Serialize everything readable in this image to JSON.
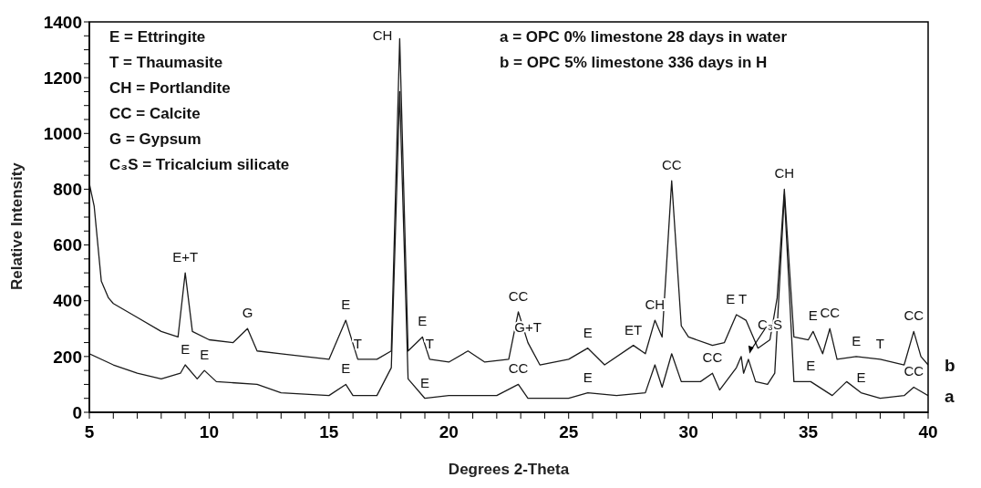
{
  "chart_data": {
    "type": "line",
    "xlabel": "Degrees 2-Theta",
    "ylabel": "Relative Intensity",
    "xlim": [
      5,
      40
    ],
    "ylim": [
      0,
      1400
    ],
    "xticks": [
      5,
      {
        "value": 6,
        "label": null
      },
      {
        "value": 7,
        "label": null
      },
      {
        "value": 8,
        "label": null
      },
      {
        "value": 9,
        "label": null
      },
      10,
      {
        "value": 11,
        "label": null
      },
      {
        "value": 12,
        "label": null
      },
      {
        "value": 13,
        "label": null
      },
      {
        "value": 14,
        "label": null
      },
      15,
      {
        "value": 16,
        "label": null
      },
      {
        "value": 17,
        "label": null
      },
      {
        "value": 18,
        "label": null
      },
      {
        "value": 19,
        "label": null
      },
      20,
      {
        "value": 21,
        "label": null
      },
      {
        "value": 22,
        "label": null
      },
      {
        "value": 23,
        "label": null
      },
      {
        "value": 24,
        "label": null
      },
      25,
      {
        "value": 26,
        "label": null
      },
      {
        "value": 27,
        "label": null
      },
      {
        "value": 28,
        "label": null
      },
      {
        "value": 29,
        "label": null
      },
      30,
      {
        "value": 31,
        "label": null
      },
      {
        "value": 32,
        "label": null
      },
      {
        "value": 33,
        "label": null
      },
      {
        "value": 34,
        "label": null
      },
      35,
      {
        "value": 36,
        "label": null
      },
      {
        "value": 37,
        "label": null
      },
      {
        "value": 38,
        "label": null
      },
      {
        "value": 39,
        "label": null
      },
      40
    ],
    "yticks": [
      0,
      {
        "value": 50,
        "label": null
      },
      {
        "value": 100,
        "label": null
      },
      {
        "value": 150,
        "label": null
      },
      200,
      {
        "value": 250,
        "label": null
      },
      {
        "value": 300,
        "label": null
      },
      {
        "value": 350,
        "label": null
      },
      400,
      {
        "value": 450,
        "label": null
      },
      {
        "value": 500,
        "label": null
      },
      {
        "value": 550,
        "label": null
      },
      600,
      {
        "value": 650,
        "label": null
      },
      {
        "value": 700,
        "label": null
      },
      {
        "value": 750,
        "label": null
      },
      800,
      {
        "value": 850,
        "label": null
      },
      {
        "value": 900,
        "label": null
      },
      {
        "value": 950,
        "label": null
      },
      1000,
      {
        "value": 1050,
        "label": null
      },
      {
        "value": 1100,
        "label": null
      },
      {
        "value": 1150,
        "label": null
      },
      1200,
      {
        "value": 1250,
        "label": null
      },
      {
        "value": 1300,
        "label": null
      },
      {
        "value": 1350,
        "label": null
      },
      1400
    ],
    "grid": false,
    "marker": "none",
    "line_style": "solid",
    "series": [
      {
        "name": "b",
        "color": "#1a1a1a",
        "x": [
          5,
          5.2,
          5.5,
          5.8,
          6,
          7,
          8,
          8.7,
          9,
          9.3,
          10,
          11,
          11.6,
          12,
          13,
          15,
          15.7,
          16.2,
          17,
          17.6,
          17.95,
          18.3,
          18.9,
          19.2,
          20,
          20.8,
          21.5,
          22.5,
          22.9,
          23.3,
          23.8,
          25,
          25.8,
          26.5,
          27.7,
          28.2,
          28.6,
          28.9,
          29.3,
          29.7,
          30,
          31,
          31.5,
          32,
          32.4,
          32.9,
          33.4,
          33.7,
          34,
          34.4,
          35,
          35.2,
          35.6,
          35.9,
          36.2,
          37,
          38,
          39,
          39.4,
          39.7,
          40
        ],
        "values": [
          820,
          740,
          470,
          410,
          390,
          340,
          290,
          270,
          500,
          290,
          260,
          250,
          300,
          220,
          210,
          190,
          330,
          190,
          190,
          220,
          1340,
          220,
          270,
          190,
          180,
          220,
          180,
          190,
          360,
          250,
          170,
          190,
          230,
          170,
          240,
          210,
          330,
          270,
          830,
          310,
          270,
          240,
          250,
          350,
          330,
          230,
          260,
          410,
          800,
          270,
          260,
          290,
          210,
          300,
          190,
          200,
          190,
          170,
          290,
          200,
          170
        ]
      },
      {
        "name": "a",
        "color": "#1a1a1a",
        "x": [
          5,
          6,
          7,
          8,
          8.8,
          9,
          9.5,
          9.8,
          10.3,
          12,
          13,
          15,
          15.7,
          16,
          17,
          17.6,
          17.95,
          18.3,
          19,
          20,
          22,
          22.9,
          23.3,
          25,
          25.8,
          27,
          28.2,
          28.6,
          28.9,
          29.3,
          29.7,
          30.5,
          31,
          31.3,
          32,
          32.2,
          32.3,
          32.5,
          32.8,
          33.3,
          33.6,
          34,
          34.4,
          35.1,
          36,
          36.6,
          37.2,
          38,
          39,
          39.4,
          40
        ],
        "values": [
          210,
          170,
          140,
          120,
          140,
          170,
          120,
          150,
          110,
          100,
          70,
          60,
          100,
          60,
          60,
          160,
          1150,
          120,
          50,
          60,
          60,
          100,
          50,
          50,
          70,
          60,
          70,
          170,
          90,
          210,
          110,
          110,
          140,
          80,
          160,
          200,
          140,
          190,
          110,
          100,
          140,
          780,
          110,
          110,
          60,
          110,
          70,
          50,
          60,
          90,
          60
        ]
      }
    ],
    "annotations": [
      "E = Ettringite",
      "T = Thaumasite",
      "CH = Portlandite",
      "CC = Calcite",
      "G = Gypsum",
      "C₃S = Tricalcium silicate",
      "a = OPC 0% limestone 28 days in water",
      "b = OPC 5% limestone 336 days in H",
      {
        "text": "E+T",
        "x": 9,
        "y": 500
      },
      {
        "text": "G",
        "x": 11.6,
        "y": 300
      },
      {
        "text": "E",
        "x": 15.7,
        "y": 330
      },
      {
        "text": "T",
        "x": 16.2,
        "y": 190
      },
      {
        "text": "CH",
        "x": 17.95,
        "y": 1340
      },
      {
        "text": "E",
        "x": 18.9,
        "y": 270
      },
      {
        "text": "T",
        "x": 19.2,
        "y": 190
      },
      {
        "text": "CC",
        "x": 22.9,
        "y": 360
      },
      {
        "text": "G+T",
        "x": 23.3,
        "y": 250
      },
      {
        "text": "E",
        "x": 25.8,
        "y": 230
      },
      {
        "text": "ET",
        "x": 27.7,
        "y": 240
      },
      {
        "text": "CH",
        "x": 28.6,
        "y": 330
      },
      {
        "text": "CC",
        "x": 29.3,
        "y": 830
      },
      {
        "text": "E T",
        "x": 32,
        "y": 350
      },
      {
        "text": "C₃S",
        "x": 33.4,
        "y": 260
      },
      {
        "text": "CH",
        "x": 34,
        "y": 800
      },
      {
        "text": "E",
        "x": 35.2,
        "y": 290
      },
      {
        "text": "CC",
        "x": 35.9,
        "y": 300
      },
      {
        "text": "E",
        "x": 37,
        "y": 200
      },
      {
        "text": "T",
        "x": 38,
        "y": 190
      },
      {
        "text": "CC",
        "x": 39.4,
        "y": 290
      },
      {
        "text": "E",
        "x": 9,
        "y": 170
      },
      {
        "text": "E",
        "x": 9.8,
        "y": 150
      },
      {
        "text": "E",
        "x": 15.7,
        "y": 100
      },
      {
        "text": "E",
        "x": 19,
        "y": 50
      },
      {
        "text": "CC",
        "x": 22.9,
        "y": 100
      },
      {
        "text": "E",
        "x": 25.8,
        "y": 70
      },
      {
        "text": "CC",
        "x": 31,
        "y": 140
      },
      {
        "text": "E",
        "x": 35.1,
        "y": 110
      },
      {
        "text": "E",
        "x": 37.2,
        "y": 70
      },
      {
        "text": "CC",
        "x": 39.4,
        "y": 90
      }
    ]
  }
}
